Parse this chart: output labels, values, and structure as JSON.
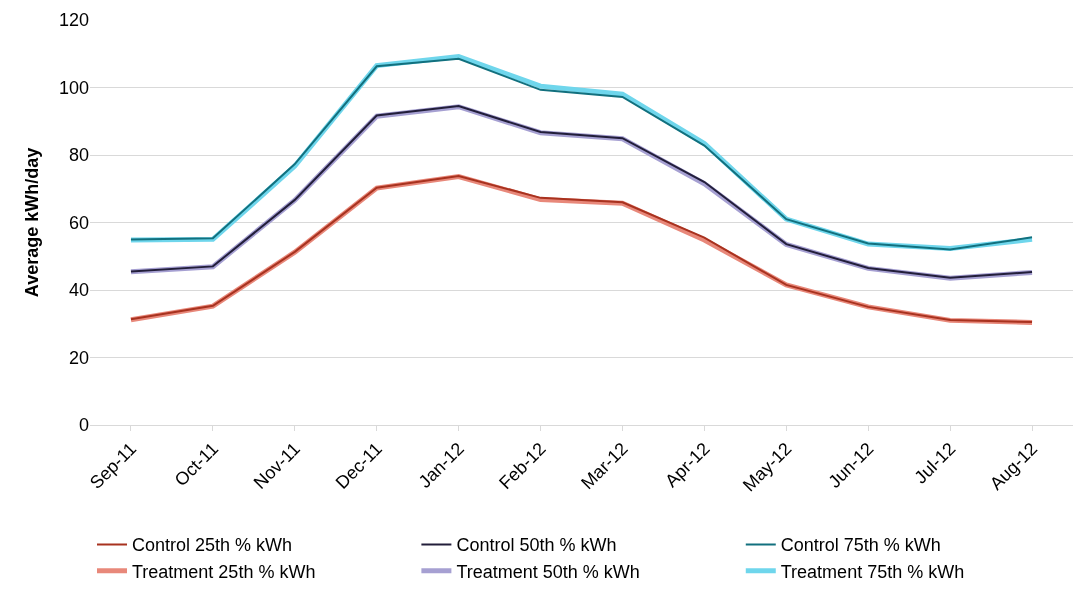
{
  "chart_data": {
    "type": "line",
    "ylabel": "Average kWh/day",
    "categories": [
      "Sep-11",
      "Oct-11",
      "Nov-11",
      "Dec-11",
      "Jan-12",
      "Feb-12",
      "Mar-12",
      "Apr-12",
      "May-12",
      "Jun-12",
      "Jul-12",
      "Aug-12"
    ],
    "series": [
      {
        "name": "Control 25th % kWh",
        "color": "#a8321f",
        "values": [
          31.3,
          35.3,
          51.3,
          70.3,
          73.8,
          67.3,
          66,
          55.5,
          41.5,
          35,
          31.1,
          30.5
        ]
      },
      {
        "name": "Control 50th % kWh",
        "color": "#221e3a",
        "values": [
          45.5,
          47,
          66.7,
          91.7,
          94.5,
          86.8,
          85,
          72,
          53.6,
          46.5,
          43.6,
          45.3
        ]
      },
      {
        "name": "Control 75th % kWh",
        "color": "#12707e",
        "values": [
          55,
          55.3,
          77.3,
          106.3,
          108.5,
          99.3,
          97.2,
          82.8,
          61,
          53.8,
          52,
          55.6
        ]
      },
      {
        "name": "Treatment 25th % kWh",
        "color": "#e8887a",
        "values": [
          31.2,
          35.2,
          51.2,
          70.2,
          73.6,
          66.8,
          65.7,
          54.8,
          41.5,
          35,
          31,
          30.4
        ]
      },
      {
        "name": "Treatment 50th % kWh",
        "color": "#a6a0d2",
        "values": [
          45.4,
          46.9,
          66.6,
          91.5,
          94.3,
          86.6,
          84.8,
          71.5,
          53.5,
          46.4,
          43.5,
          45.2
        ]
      },
      {
        "name": "Treatment 75th % kWh",
        "color": "#6fd6ec",
        "values": [
          54.8,
          55,
          76.7,
          106.5,
          109.2,
          100.4,
          98,
          83.4,
          61,
          53.6,
          52.3,
          55
        ]
      }
    ],
    "ylim": [
      0,
      120
    ],
    "yticks": [
      0,
      20,
      40,
      60,
      80,
      100,
      120
    ],
    "grid": "y",
    "legend": "bottom",
    "marker": "none",
    "line_style": "solid"
  }
}
